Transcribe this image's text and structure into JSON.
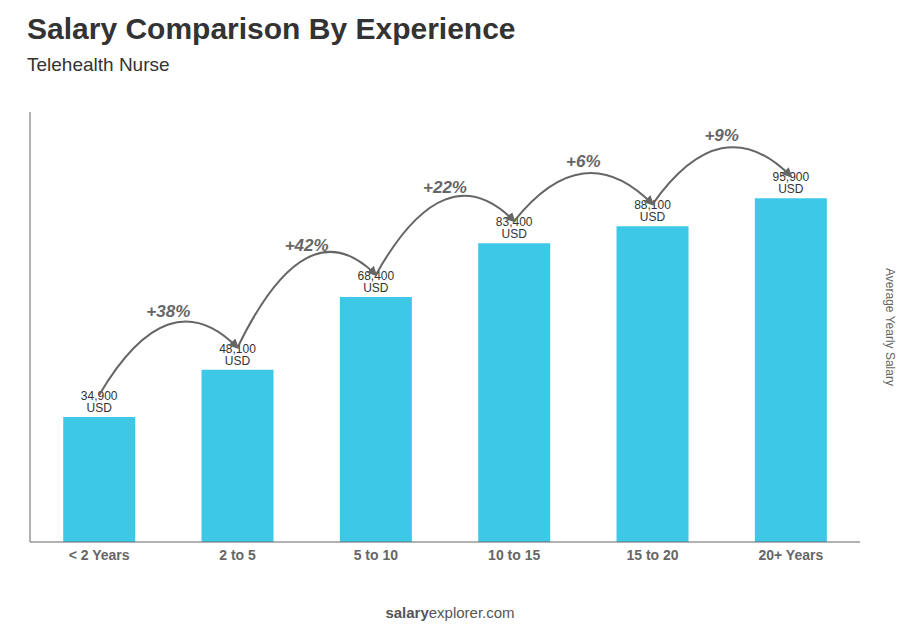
{
  "chart_data": {
    "type": "bar",
    "title": "Salary Comparison By Experience",
    "subtitle": "Telehealth Nurse",
    "ylabel": "Average Yearly Salary",
    "watermark": [
      "salary",
      "explorer.com"
    ],
    "categories": [
      "< 2 Years",
      "2 to 5",
      "5 to 10",
      "10 to 15",
      "15 to 20",
      "20+ Years"
    ],
    "values": [
      34900,
      48100,
      68400,
      83400,
      88100,
      95900
    ],
    "value_labels": [
      "34,900 USD",
      "48,100 USD",
      "68,400 USD",
      "83,400 USD",
      "88,100 USD",
      "95,900 USD"
    ],
    "data_labels": true,
    "annotations": [
      "+38%",
      "+42%",
      "+22%",
      "+6%",
      "+9%"
    ],
    "color": "#3ec8e8",
    "ylim": [
      0,
      120000
    ],
    "tick_labels": "x"
  }
}
